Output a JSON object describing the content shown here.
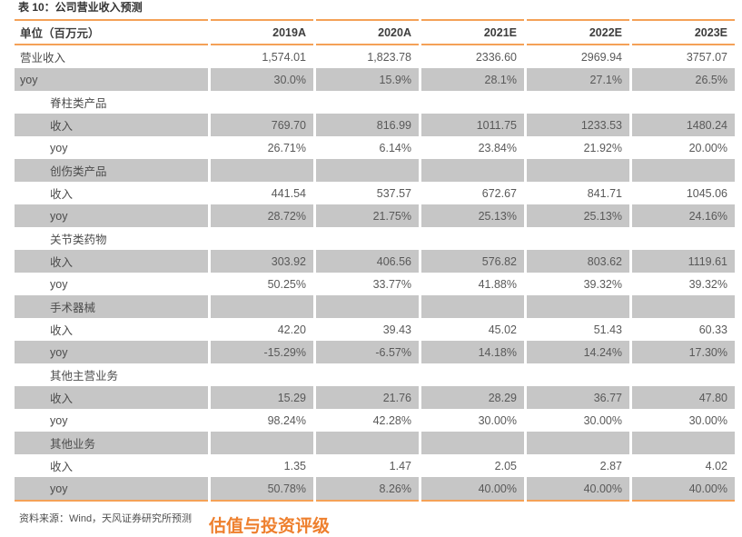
{
  "colors": {
    "accent_rule": "#f4a157",
    "heading_orange": "#ee7f2d",
    "shaded_row": "#c6c6c6"
  },
  "title": "表 10：公司营业收入预测",
  "table": {
    "headers": [
      "单位（百万元）",
      "2019A",
      "2020A",
      "2021E",
      "2022E",
      "2023E"
    ],
    "rows": [
      {
        "label": "营业收入",
        "indent": false,
        "shaded": false,
        "values": [
          "1,574.01",
          "1,823.78",
          "2336.60",
          "2969.94",
          "3757.07"
        ]
      },
      {
        "label": "yoy",
        "indent": false,
        "shaded": true,
        "values": [
          "30.0%",
          "15.9%",
          "28.1%",
          "27.1%",
          "26.5%"
        ]
      },
      {
        "label": "脊柱类产品",
        "indent": true,
        "shaded": false,
        "values": [
          "",
          "",
          "",
          "",
          ""
        ]
      },
      {
        "label": "收入",
        "indent": true,
        "shaded": true,
        "values": [
          "769.70",
          "816.99",
          "1011.75",
          "1233.53",
          "1480.24"
        ]
      },
      {
        "label": "yoy",
        "indent": true,
        "shaded": false,
        "values": [
          "26.71%",
          "6.14%",
          "23.84%",
          "21.92%",
          "20.00%"
        ]
      },
      {
        "label": "创伤类产品",
        "indent": true,
        "shaded": true,
        "values": [
          "",
          "",
          "",
          "",
          ""
        ]
      },
      {
        "label": "收入",
        "indent": true,
        "shaded": false,
        "values": [
          "441.54",
          "537.57",
          "672.67",
          "841.71",
          "1045.06"
        ]
      },
      {
        "label": "yoy",
        "indent": true,
        "shaded": true,
        "values": [
          "28.72%",
          "21.75%",
          "25.13%",
          "25.13%",
          "24.16%"
        ]
      },
      {
        "label": "关节类药物",
        "indent": true,
        "shaded": false,
        "values": [
          "",
          "",
          "",
          "",
          ""
        ]
      },
      {
        "label": "收入",
        "indent": true,
        "shaded": true,
        "values": [
          "303.92",
          "406.56",
          "576.82",
          "803.62",
          "1119.61"
        ]
      },
      {
        "label": "yoy",
        "indent": true,
        "shaded": false,
        "values": [
          "50.25%",
          "33.77%",
          "41.88%",
          "39.32%",
          "39.32%"
        ]
      },
      {
        "label": "手术器械",
        "indent": true,
        "shaded": true,
        "values": [
          "",
          "",
          "",
          "",
          ""
        ]
      },
      {
        "label": "收入",
        "indent": true,
        "shaded": false,
        "values": [
          "42.20",
          "39.43",
          "45.02",
          "51.43",
          "60.33"
        ]
      },
      {
        "label": "yoy",
        "indent": true,
        "shaded": true,
        "values": [
          "-15.29%",
          "-6.57%",
          "14.18%",
          "14.24%",
          "17.30%"
        ]
      },
      {
        "label": "其他主营业务",
        "indent": true,
        "shaded": false,
        "values": [
          "",
          "",
          "",
          "",
          ""
        ]
      },
      {
        "label": "收入",
        "indent": true,
        "shaded": true,
        "values": [
          "15.29",
          "21.76",
          "28.29",
          "36.77",
          "47.80"
        ]
      },
      {
        "label": "yoy",
        "indent": true,
        "shaded": false,
        "values": [
          "98.24%",
          "42.28%",
          "30.00%",
          "30.00%",
          "30.00%"
        ]
      },
      {
        "label": "其他业务",
        "indent": true,
        "shaded": true,
        "values": [
          "",
          "",
          "",
          "",
          ""
        ]
      },
      {
        "label": "收入",
        "indent": true,
        "shaded": false,
        "values": [
          "1.35",
          "1.47",
          "2.05",
          "2.87",
          "4.02"
        ]
      },
      {
        "label": "yoy",
        "indent": true,
        "shaded": true,
        "values": [
          "50.78%",
          "8.26%",
          "40.00%",
          "40.00%",
          "40.00%"
        ]
      }
    ]
  },
  "source_note": "资料来源：Wind，天风证券研究所预测",
  "next_section_heading_partial": "估值与投资评级",
  "chart_data": {
    "type": "table",
    "title": "表 10：公司营业收入预测",
    "unit": "百万元",
    "categories": [
      "2019A",
      "2020A",
      "2021E",
      "2022E",
      "2023E"
    ],
    "series": [
      {
        "name": "营业收入",
        "values": [
          1574.01,
          1823.78,
          2336.6,
          2969.94,
          3757.07
        ]
      },
      {
        "name": "营业收入 yoy",
        "values_pct": [
          30.0,
          15.9,
          28.1,
          27.1,
          26.5
        ]
      },
      {
        "name": "脊柱类产品 收入",
        "values": [
          769.7,
          816.99,
          1011.75,
          1233.53,
          1480.24
        ]
      },
      {
        "name": "脊柱类产品 yoy",
        "values_pct": [
          26.71,
          6.14,
          23.84,
          21.92,
          20.0
        ]
      },
      {
        "name": "创伤类产品 收入",
        "values": [
          441.54,
          537.57,
          672.67,
          841.71,
          1045.06
        ]
      },
      {
        "name": "创伤类产品 yoy",
        "values_pct": [
          28.72,
          21.75,
          25.13,
          25.13,
          24.16
        ]
      },
      {
        "name": "关节类药物 收入",
        "values": [
          303.92,
          406.56,
          576.82,
          803.62,
          1119.61
        ]
      },
      {
        "name": "关节类药物 yoy",
        "values_pct": [
          50.25,
          33.77,
          41.88,
          39.32,
          39.32
        ]
      },
      {
        "name": "手术器械 收入",
        "values": [
          42.2,
          39.43,
          45.02,
          51.43,
          60.33
        ]
      },
      {
        "name": "手术器械 yoy",
        "values_pct": [
          -15.29,
          -6.57,
          14.18,
          14.24,
          17.3
        ]
      },
      {
        "name": "其他主营业务 收入",
        "values": [
          15.29,
          21.76,
          28.29,
          36.77,
          47.8
        ]
      },
      {
        "name": "其他主营业务 yoy",
        "values_pct": [
          98.24,
          42.28,
          30.0,
          30.0,
          30.0
        ]
      },
      {
        "name": "其他业务 收入",
        "values": [
          1.35,
          1.47,
          2.05,
          2.87,
          4.02
        ]
      },
      {
        "name": "其他业务 yoy",
        "values_pct": [
          50.78,
          8.26,
          40.0,
          40.0,
          40.0
        ]
      }
    ]
  }
}
